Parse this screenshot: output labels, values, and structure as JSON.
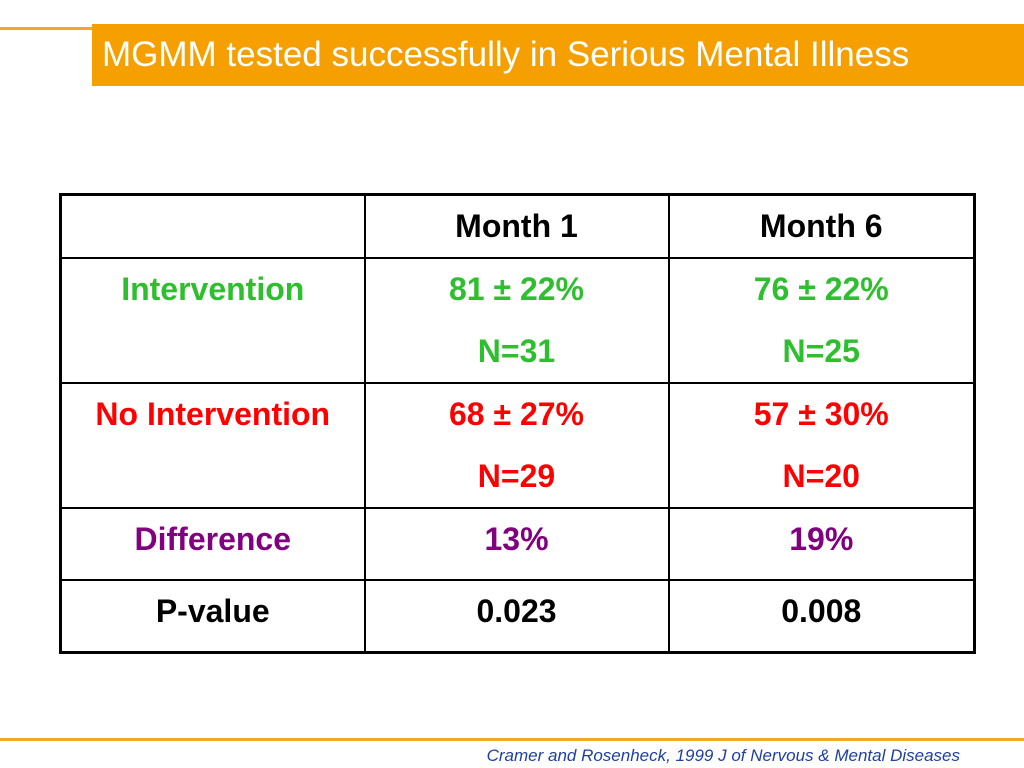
{
  "slide": {
    "title": "MGMM tested successfully in Serious Mental Illness",
    "citation": "Cramer and Rosenheck, 1999 J of Nervous & Mental Diseases"
  },
  "colors": {
    "title_bar": "#f5a000",
    "accent_line": "#f5a623",
    "intervention": "#2dbf2d",
    "no_intervention": "#ff0000",
    "difference": "#800080",
    "citation": "#2040a0"
  },
  "table": {
    "headers": [
      "",
      "Month 1",
      "Month 6"
    ],
    "rows": [
      {
        "label": "Intervention",
        "month1": {
          "value": "81 ± 22%",
          "n": "N=31"
        },
        "month6": {
          "value": "76 ± 22%",
          "n": "N=25"
        }
      },
      {
        "label": "No Intervention",
        "month1": {
          "value": "68 ± 27%",
          "n": "N=29"
        },
        "month6": {
          "value": "57 ± 30%",
          "n": "N=20"
        }
      },
      {
        "label": "Difference",
        "month1": {
          "value": "13%"
        },
        "month6": {
          "value": "19%"
        }
      },
      {
        "label": "P-value",
        "month1": {
          "value": "0.023"
        },
        "month6": {
          "value": "0.008"
        }
      }
    ]
  }
}
